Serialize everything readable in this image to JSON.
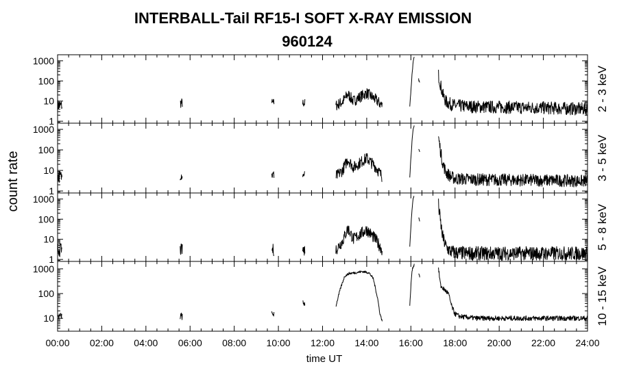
{
  "chart_data": {
    "type": "line",
    "title": "INTERBALL-Tail RF15-I SOFT X-RAY EMISSION",
    "subtitle": "960124",
    "xlabel": "time UT",
    "ylabel": "count rate",
    "x_unit": "hours UT",
    "xlim": [
      0,
      24
    ],
    "x_ticks": [
      "00:00",
      "02:00",
      "04:00",
      "06:00",
      "08:00",
      "10:00",
      "12:00",
      "14:00",
      "16:00",
      "18:00",
      "20:00",
      "22:00",
      "24:00"
    ],
    "y_scale": "log",
    "line_color": "#000000",
    "panels": [
      {
        "name": "2 - 3 keV",
        "ylim": [
          0.8,
          2000
        ],
        "y_ticks": [
          "1",
          "10",
          "100",
          "1000"
        ],
        "segments": [
          {
            "x": [
              0.0,
              0.1,
              0.2
            ],
            "y": [
              6,
              6,
              6
            ],
            "noise": 0.3
          },
          {
            "x": [
              5.55,
              5.6,
              5.65
            ],
            "y": [
              8,
              8,
              8
            ],
            "noise": 0.25
          },
          {
            "x": [
              9.7,
              9.75,
              9.8
            ],
            "y": [
              8,
              8,
              8
            ],
            "noise": 0.22
          },
          {
            "x": [
              11.1,
              11.15,
              11.2
            ],
            "y": [
              8,
              8,
              8
            ],
            "noise": 0.22
          },
          {
            "x": [
              12.6,
              12.9,
              13.15,
              13.4,
              13.6,
              14.0,
              14.4,
              14.7
            ],
            "y": [
              6,
              9,
              22,
              10,
              14,
              25,
              12,
              6
            ],
            "noise": 0.28
          },
          {
            "x": [
              15.95,
              16.0,
              16.05,
              16.1,
              16.15
            ],
            "y": [
              6,
              30,
              200,
              800,
              1500
            ],
            "noise": 0.05
          },
          {
            "x": [
              16.35,
              16.4
            ],
            "y": [
              120,
              80
            ],
            "noise": 0.05
          },
          {
            "x": [
              17.25,
              17.35,
              17.45,
              17.6,
              17.8,
              18.0,
              18.5,
              19.0,
              20.0,
              21.0,
              22.0,
              23.0,
              24.0
            ],
            "y": [
              200,
              60,
              20,
              9,
              7,
              6,
              5.5,
              5.2,
              5,
              4.8,
              4.6,
              4.3,
              4
            ],
            "noise": 0.32
          }
        ]
      },
      {
        "name": "3 - 5 keV",
        "ylim": [
          0.8,
          2000
        ],
        "y_ticks": [
          "1",
          "10",
          "100",
          "1000"
        ],
        "segments": [
          {
            "x": [
              0.0,
              0.1,
              0.2
            ],
            "y": [
              5,
              5,
              5
            ],
            "noise": 0.3
          },
          {
            "x": [
              5.55,
              5.6,
              5.65
            ],
            "y": [
              6,
              6,
              6
            ],
            "noise": 0.25
          },
          {
            "x": [
              9.7,
              9.75,
              9.8
            ],
            "y": [
              6,
              6,
              6
            ],
            "noise": 0.22
          },
          {
            "x": [
              11.1,
              11.15,
              11.2
            ],
            "y": [
              6,
              6,
              6
            ],
            "noise": 0.22
          },
          {
            "x": [
              12.6,
              12.9,
              13.15,
              13.4,
              13.6,
              14.0,
              14.4,
              14.7
            ],
            "y": [
              5,
              10,
              35,
              14,
              20,
              40,
              15,
              5
            ],
            "noise": 0.28
          },
          {
            "x": [
              15.95,
              16.0,
              16.05,
              16.1,
              16.15
            ],
            "y": [
              5,
              40,
              250,
              900,
              1500
            ],
            "noise": 0.05
          },
          {
            "x": [
              16.35,
              16.4
            ],
            "y": [
              120,
              80
            ],
            "noise": 0.05
          },
          {
            "x": [
              17.25,
              17.35,
              17.45,
              17.6,
              17.8,
              18.0,
              18.5,
              19.0,
              20.0,
              21.0,
              22.0,
              23.0,
              24.0
            ],
            "y": [
              400,
              80,
              20,
              8,
              5,
              4,
              3.8,
              3.6,
              3.5,
              3.4,
              3.3,
              3.2,
              3
            ],
            "noise": 0.3
          }
        ]
      },
      {
        "name": "5 - 8 keV",
        "ylim": [
          0.8,
          2000
        ],
        "y_ticks": [
          "1",
          "10",
          "100",
          "1000"
        ],
        "segments": [
          {
            "x": [
              0.0,
              0.1,
              0.2
            ],
            "y": [
              3,
              3,
              3
            ],
            "noise": 0.35
          },
          {
            "x": [
              5.55,
              5.6,
              5.65
            ],
            "y": [
              3,
              3,
              3
            ],
            "noise": 0.3
          },
          {
            "x": [
              9.7,
              9.75,
              9.8
            ],
            "y": [
              3,
              3,
              3
            ],
            "noise": 0.3
          },
          {
            "x": [
              11.1,
              11.15,
              11.2
            ],
            "y": [
              3,
              3,
              3
            ],
            "noise": 0.3
          },
          {
            "x": [
              12.6,
              12.9,
              13.15,
              13.4,
              13.6,
              14.0,
              14.4,
              14.7
            ],
            "y": [
              3,
              8,
              35,
              10,
              15,
              30,
              10,
              3
            ],
            "noise": 0.3
          },
          {
            "x": [
              15.95,
              16.0,
              16.05,
              16.1,
              16.15
            ],
            "y": [
              4,
              40,
              300,
              1000,
              1500
            ],
            "noise": 0.05
          },
          {
            "x": [
              16.35,
              16.4
            ],
            "y": [
              120,
              80
            ],
            "noise": 0.05
          },
          {
            "x": [
              17.25,
              17.35,
              17.45,
              17.6,
              17.8,
              18.0,
              18.5,
              19.0,
              20.0,
              21.0,
              22.0,
              23.0,
              24.0
            ],
            "y": [
              500,
              60,
              12,
              4,
              2.5,
              2.2,
              2,
              2,
              2,
              2,
              2,
              2,
              2
            ],
            "noise": 0.35
          }
        ]
      },
      {
        "name": "10 - 15 keV",
        "ylim": [
          3,
          2000
        ],
        "y_ticks": [
          "10",
          "100",
          "1000"
        ],
        "segments": [
          {
            "x": [
              0.0,
              0.1,
              0.2
            ],
            "y": [
              12,
              12,
              12
            ],
            "noise": 0.15
          },
          {
            "x": [
              5.55,
              5.6,
              5.65
            ],
            "y": [
              12,
              12,
              12
            ],
            "noise": 0.15
          },
          {
            "x": [
              9.7,
              9.75,
              9.8
            ],
            "y": [
              15,
              15,
              15
            ],
            "noise": 0.12
          },
          {
            "x": [
              11.1,
              11.15,
              11.2
            ],
            "y": [
              40,
              40,
              40
            ],
            "noise": 0.12
          },
          {
            "x": [
              12.6,
              12.8,
              13.0,
              13.2,
              13.5,
              13.8,
              14.1,
              14.3,
              14.5,
              14.6,
              14.7
            ],
            "y": [
              30,
              150,
              500,
              650,
              700,
              780,
              700,
              400,
              60,
              15,
              8
            ],
            "noise": 0.05
          },
          {
            "x": [
              15.95,
              16.0,
              16.05,
              16.1,
              16.15
            ],
            "y": [
              30,
              200,
              800,
              1200,
              1500
            ],
            "noise": 0.05
          },
          {
            "x": [
              16.35,
              16.4
            ],
            "y": [
              700,
              500
            ],
            "noise": 0.05
          },
          {
            "x": [
              17.25,
              17.35,
              17.5,
              17.7,
              17.85,
              18.0,
              18.2,
              18.5,
              19.0,
              20.0,
              21.0,
              22.0,
              23.0,
              24.0
            ],
            "y": [
              1000,
              200,
              150,
              100,
              30,
              15,
              12,
              11,
              10,
              10,
              10,
              10,
              10,
              10
            ],
            "noise": 0.1
          }
        ]
      }
    ]
  }
}
